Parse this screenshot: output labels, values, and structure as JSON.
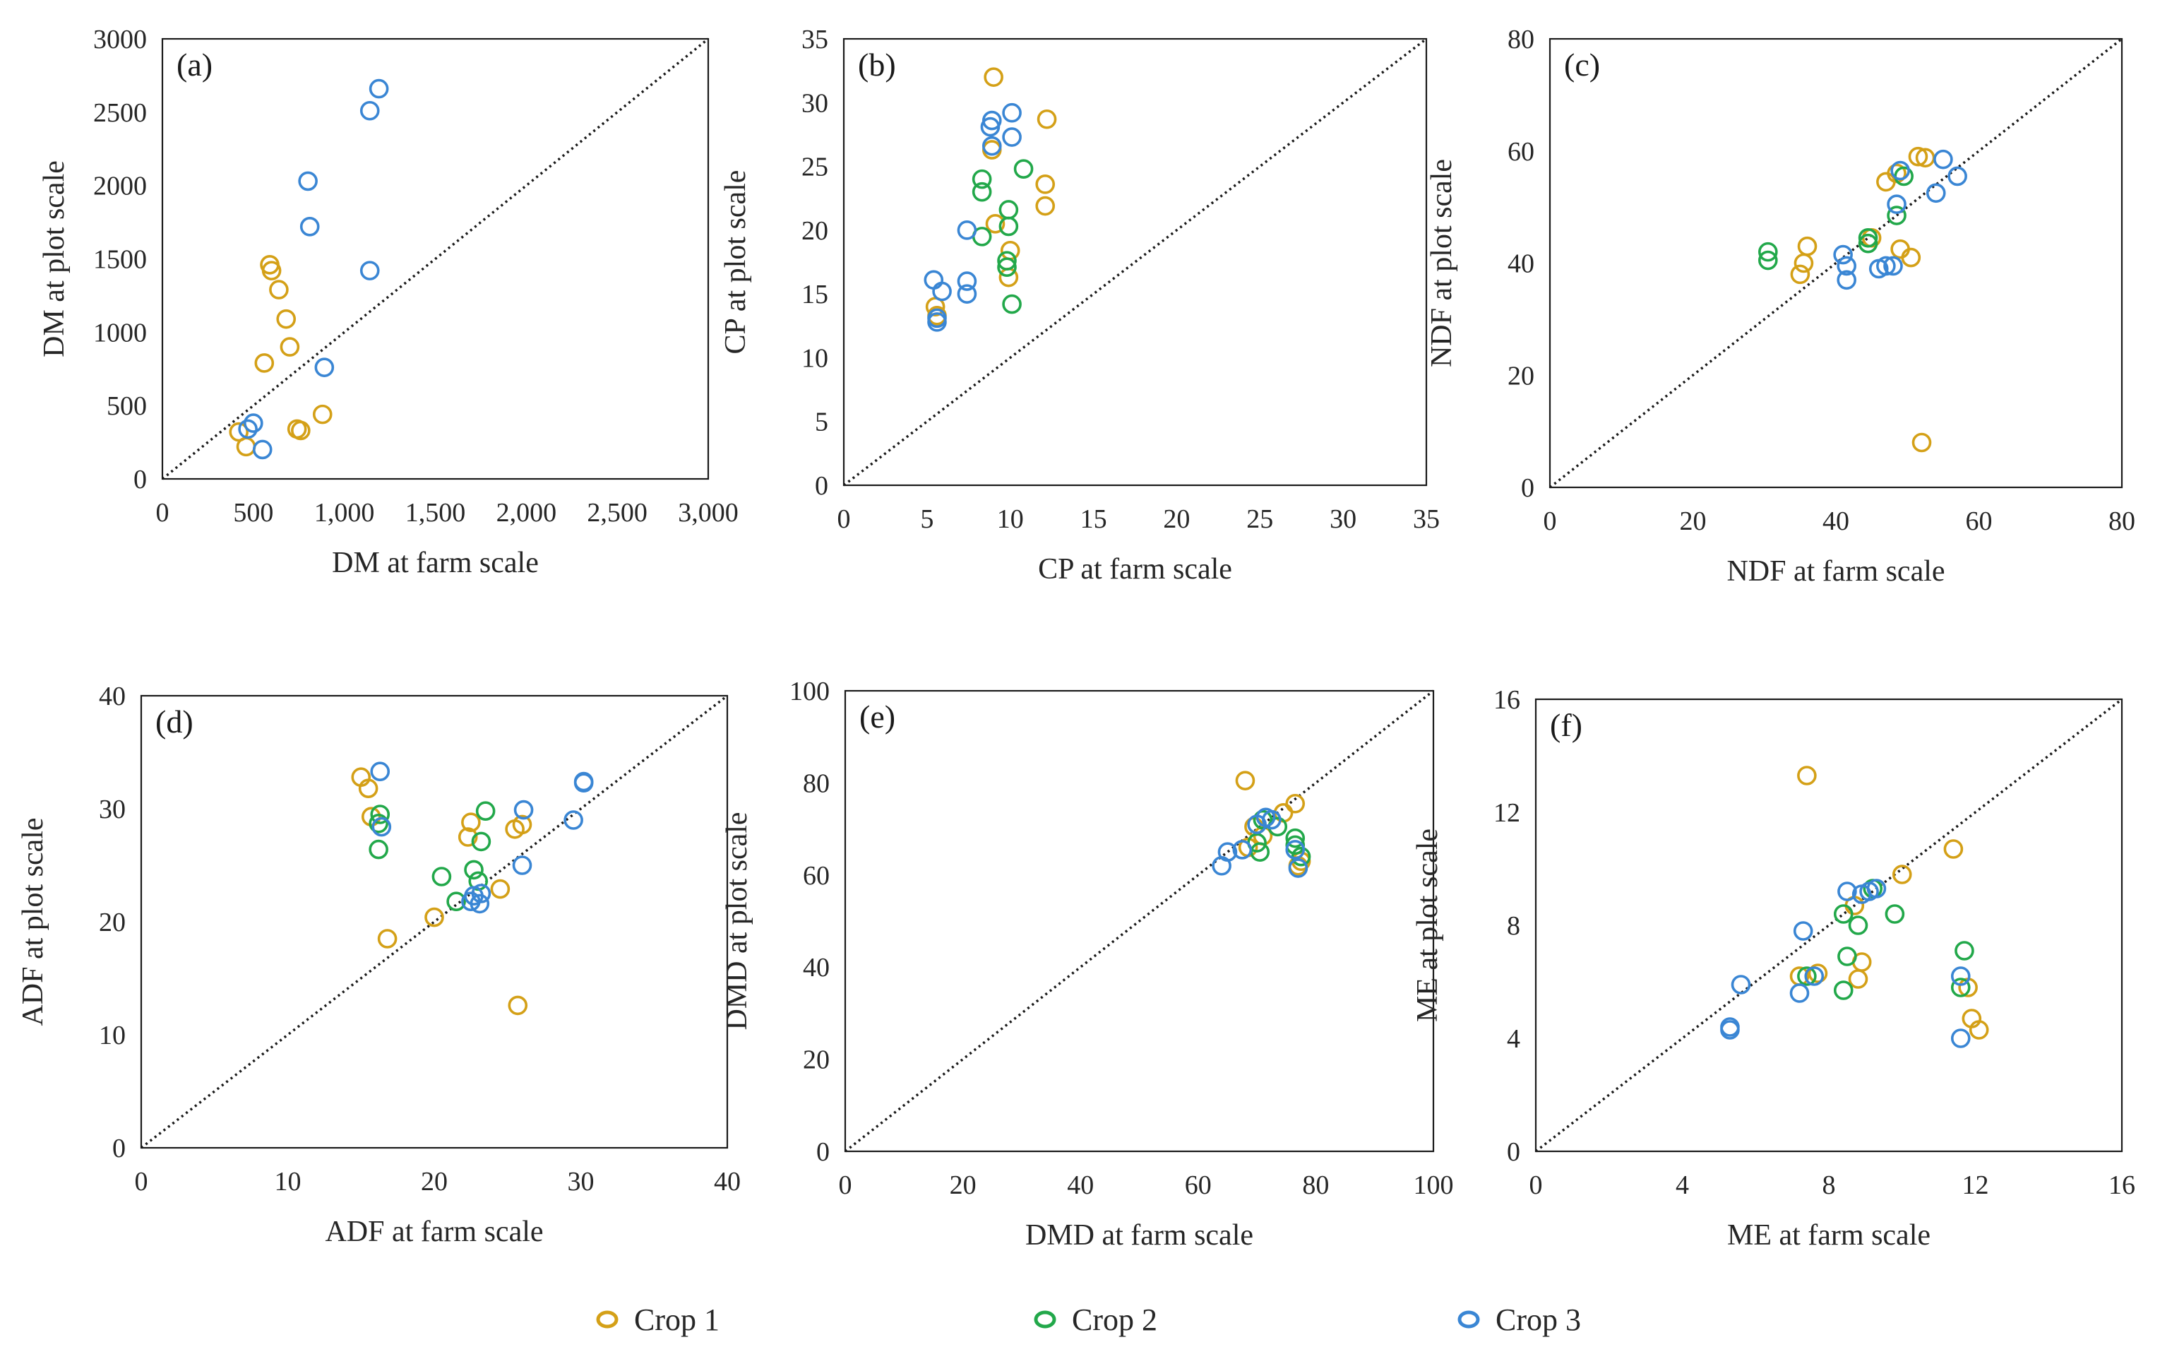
{
  "colors": {
    "crop1": "#D4A017",
    "crop2": "#22A84A",
    "crop3": "#3A86D4",
    "frame": "#1a1a1a",
    "diag": "#1a1a1a"
  },
  "legend": [
    {
      "label": "Crop 1",
      "color": "#D4A017"
    },
    {
      "label": "Crop 2",
      "color": "#22A84A"
    },
    {
      "label": "Crop 3",
      "color": "#3A86D4"
    }
  ],
  "chart_data": [
    {
      "type": "scatter",
      "panel": "(a)",
      "xlabel": "DM at farm scale",
      "ylabel": "DM at plot scale",
      "xlim": [
        0,
        3000
      ],
      "ylim": [
        0,
        3000
      ],
      "xticks": [
        0,
        500,
        1000,
        1500,
        2000,
        2500,
        3000
      ],
      "xtick_labels": [
        "0",
        "500",
        "1,000",
        "1,500",
        "2,000",
        "2,500",
        "3,000"
      ],
      "yticks": [
        0,
        500,
        1000,
        1500,
        2000,
        2500,
        3000
      ],
      "ytick_labels": [
        "0",
        "500",
        "1000",
        "1500",
        "2000",
        "2500",
        "3000"
      ],
      "reference_line": "1:1",
      "series": [
        {
          "name": "Crop 1",
          "points": [
            [
              590,
              1460
            ],
            [
              600,
              1420
            ],
            [
              640,
              1290
            ],
            [
              680,
              1090
            ],
            [
              700,
              900
            ],
            [
              560,
              790
            ],
            [
              880,
              440
            ],
            [
              760,
              330
            ],
            [
              740,
              340
            ],
            [
              420,
              320
            ],
            [
              460,
              220
            ]
          ]
        },
        {
          "name": "Crop 2",
          "points": []
        },
        {
          "name": "Crop 3",
          "points": [
            [
              1190,
              2660
            ],
            [
              1140,
              2510
            ],
            [
              800,
              2030
            ],
            [
              810,
              1720
            ],
            [
              1140,
              1420
            ],
            [
              890,
              760
            ],
            [
              500,
              380
            ],
            [
              470,
              340
            ],
            [
              550,
              200
            ]
          ]
        }
      ]
    },
    {
      "type": "scatter",
      "panel": "(b)",
      "xlabel": "CP at farm scale",
      "ylabel": "CP at plot scale",
      "xlim": [
        0,
        35
      ],
      "ylim": [
        0,
        35
      ],
      "xticks": [
        0,
        5,
        10,
        15,
        20,
        25,
        30,
        35
      ],
      "xtick_labels": [
        "0",
        "5",
        "10",
        "15",
        "20",
        "25",
        "30",
        "35"
      ],
      "yticks": [
        0,
        5,
        10,
        15,
        20,
        25,
        30,
        35
      ],
      "ytick_labels": [
        "0",
        "5",
        "10",
        "15",
        "20",
        "25",
        "30",
        "35"
      ],
      "reference_line": "1:1",
      "series": [
        {
          "name": "Crop 1",
          "points": [
            [
              9.0,
              32.0
            ],
            [
              12.2,
              28.7
            ],
            [
              8.9,
              26.3
            ],
            [
              12.1,
              23.6
            ],
            [
              12.1,
              21.9
            ],
            [
              9.1,
              20.5
            ],
            [
              10.0,
              18.4
            ],
            [
              9.9,
              16.3
            ],
            [
              5.5,
              14.0
            ],
            [
              5.6,
              13.3
            ]
          ]
        },
        {
          "name": "Crop 2",
          "points": [
            [
              10.8,
              24.8
            ],
            [
              8.3,
              24.0
            ],
            [
              8.3,
              23.0
            ],
            [
              9.9,
              21.6
            ],
            [
              9.9,
              20.3
            ],
            [
              8.3,
              19.5
            ],
            [
              9.8,
              17.6
            ],
            [
              9.8,
              17.1
            ],
            [
              10.1,
              14.2
            ]
          ]
        },
        {
          "name": "Crop 3",
          "points": [
            [
              10.1,
              29.2
            ],
            [
              8.9,
              28.6
            ],
            [
              8.8,
              28.1
            ],
            [
              10.1,
              27.3
            ],
            [
              8.9,
              26.6
            ],
            [
              7.4,
              20.0
            ],
            [
              5.4,
              16.1
            ],
            [
              7.4,
              16.0
            ],
            [
              7.4,
              15.0
            ],
            [
              5.9,
              15.2
            ],
            [
              5.6,
              13.1
            ],
            [
              5.6,
              12.8
            ]
          ]
        }
      ]
    },
    {
      "type": "scatter",
      "panel": "(c)",
      "xlabel": "NDF at farm scale",
      "ylabel": "NDF at plot scale",
      "xlim": [
        0,
        80
      ],
      "ylim": [
        0,
        80
      ],
      "xticks": [
        0,
        20,
        40,
        60,
        80
      ],
      "xtick_labels": [
        "0",
        "20",
        "40",
        "60",
        "80"
      ],
      "yticks": [
        0,
        20,
        40,
        60,
        80
      ],
      "ytick_labels": [
        "0",
        "20",
        "40",
        "60",
        "80"
      ],
      "reference_line": "1:1",
      "series": [
        {
          "name": "Crop 1",
          "points": [
            [
              51.5,
              59.0
            ],
            [
              52.5,
              58.8
            ],
            [
              47.0,
              54.5
            ],
            [
              48.5,
              56.0
            ],
            [
              36.0,
              43.0
            ],
            [
              35.5,
              40.0
            ],
            [
              35.0,
              38.0
            ],
            [
              49.0,
              42.5
            ],
            [
              50.5,
              41.0
            ],
            [
              45.0,
              44.5
            ],
            [
              52.0,
              8.0
            ]
          ]
        },
        {
          "name": "Crop 2",
          "points": [
            [
              49.5,
              55.5
            ],
            [
              30.5,
              42.0
            ],
            [
              30.5,
              40.5
            ],
            [
              44.5,
              44.5
            ],
            [
              44.5,
              43.5
            ],
            [
              48.5,
              48.5
            ]
          ]
        },
        {
          "name": "Crop 3",
          "points": [
            [
              55.0,
              58.5
            ],
            [
              49.0,
              56.5
            ],
            [
              57.0,
              55.5
            ],
            [
              54.0,
              52.5
            ],
            [
              48.5,
              50.5
            ],
            [
              41.0,
              41.5
            ],
            [
              41.5,
              39.5
            ],
            [
              41.5,
              37.0
            ],
            [
              46.0,
              39.0
            ],
            [
              47.0,
              39.5
            ],
            [
              48.0,
              39.5
            ]
          ]
        }
      ]
    },
    {
      "type": "scatter",
      "panel": "(d)",
      "xlabel": "ADF at farm scale",
      "ylabel": "ADF at plot scale",
      "xlim": [
        0,
        40
      ],
      "ylim": [
        0,
        40
      ],
      "xticks": [
        0,
        10,
        20,
        30,
        40
      ],
      "xtick_labels": [
        "0",
        "10",
        "20",
        "30",
        "40"
      ],
      "yticks": [
        0,
        10,
        20,
        30,
        40
      ],
      "ytick_labels": [
        "0",
        "10",
        "20",
        "30",
        "40"
      ],
      "reference_line": "1:1",
      "series": [
        {
          "name": "Crop 1",
          "points": [
            [
              15.0,
              32.8
            ],
            [
              15.5,
              31.8
            ],
            [
              15.7,
              29.3
            ],
            [
              22.5,
              28.8
            ],
            [
              26.0,
              28.6
            ],
            [
              25.5,
              28.2
            ],
            [
              22.3,
              27.5
            ],
            [
              24.5,
              22.9
            ],
            [
              20.0,
              20.4
            ],
            [
              16.8,
              18.5
            ],
            [
              25.7,
              12.6
            ]
          ]
        },
        {
          "name": "Crop 2",
          "points": [
            [
              16.3,
              29.5
            ],
            [
              16.2,
              28.7
            ],
            [
              23.5,
              29.8
            ],
            [
              23.2,
              27.1
            ],
            [
              16.2,
              26.4
            ],
            [
              22.7,
              24.6
            ],
            [
              20.5,
              24.0
            ],
            [
              23.0,
              23.6
            ],
            [
              21.5,
              21.8
            ]
          ]
        },
        {
          "name": "Crop 3",
          "points": [
            [
              16.3,
              33.3
            ],
            [
              16.4,
              28.4
            ],
            [
              26.1,
              29.9
            ],
            [
              29.5,
              29.0
            ],
            [
              30.2,
              32.4
            ],
            [
              30.2,
              32.3
            ],
            [
              26.0,
              25.0
            ],
            [
              22.7,
              22.3
            ],
            [
              22.5,
              21.8
            ],
            [
              23.1,
              21.6
            ],
            [
              23.2,
              22.5
            ]
          ]
        }
      ]
    },
    {
      "type": "scatter",
      "panel": "(e)",
      "xlabel": "DMD at farm scale",
      "ylabel": "DMD at plot scale",
      "xlim": [
        0,
        100
      ],
      "ylim": [
        0,
        100
      ],
      "xticks": [
        0,
        20,
        40,
        60,
        80,
        100
      ],
      "xtick_labels": [
        "0",
        "20",
        "40",
        "60",
        "80",
        "100"
      ],
      "yticks": [
        0,
        20,
        40,
        60,
        80,
        100
      ],
      "ytick_labels": [
        "0",
        "20",
        "40",
        "60",
        "80",
        "100"
      ],
      "reference_line": "1:1",
      "series": [
        {
          "name": "Crop 1",
          "points": [
            [
              68.0,
              80.5
            ],
            [
              76.5,
              75.5
            ],
            [
              74.5,
              73.5
            ],
            [
              69.5,
              70.5
            ],
            [
              71.0,
              68.5
            ],
            [
              68.5,
              66.0
            ],
            [
              77.5,
              63.0
            ],
            [
              77.0,
              62.0
            ]
          ]
        },
        {
          "name": "Crop 2",
          "points": [
            [
              71.0,
              72.0
            ],
            [
              73.5,
              70.5
            ],
            [
              76.5,
              68.0
            ],
            [
              76.5,
              66.5
            ],
            [
              70.5,
              65.0
            ],
            [
              77.5,
              64.0
            ],
            [
              70.0,
              67.0
            ]
          ]
        },
        {
          "name": "Crop 3",
          "points": [
            [
              71.5,
              72.5
            ],
            [
              72.5,
              72.0
            ],
            [
              70.0,
              71.0
            ],
            [
              67.5,
              65.5
            ],
            [
              65.0,
              65.0
            ],
            [
              64.0,
              62.0
            ],
            [
              76.5,
              65.5
            ],
            [
              77.0,
              61.5
            ]
          ]
        }
      ]
    },
    {
      "type": "scatter",
      "panel": "(f)",
      "xlabel": "ME at farm scale",
      "ylabel": "ME at plot scale",
      "xlim": [
        0,
        16
      ],
      "ylim": [
        0,
        16
      ],
      "xticks": [
        0,
        4,
        8,
        12,
        16
      ],
      "xtick_labels": [
        "0",
        "4",
        "8",
        "12",
        "16"
      ],
      "yticks": [
        0,
        4,
        8,
        12,
        16
      ],
      "ytick_labels": [
        "0",
        "4",
        "8",
        "12",
        "16"
      ],
      "reference_line": "1:1",
      "series": [
        {
          "name": "Crop 1",
          "points": [
            [
              7.4,
              13.3
            ],
            [
              11.4,
              10.7
            ],
            [
              10.0,
              9.8
            ],
            [
              8.7,
              8.7
            ],
            [
              8.9,
              6.7
            ],
            [
              8.8,
              6.1
            ],
            [
              7.2,
              6.2
            ],
            [
              7.7,
              6.3
            ],
            [
              11.8,
              5.8
            ],
            [
              11.9,
              4.7
            ],
            [
              12.1,
              4.3
            ]
          ]
        },
        {
          "name": "Crop 2",
          "points": [
            [
              9.2,
              9.3
            ],
            [
              9.8,
              8.4
            ],
            [
              8.8,
              8.0
            ],
            [
              8.4,
              8.4
            ],
            [
              8.5,
              6.9
            ],
            [
              8.4,
              5.7
            ],
            [
              11.7,
              7.1
            ],
            [
              11.6,
              5.8
            ],
            [
              7.4,
              6.2
            ]
          ]
        },
        {
          "name": "Crop 3",
          "points": [
            [
              8.5,
              9.2
            ],
            [
              8.9,
              9.1
            ],
            [
              9.1,
              9.2
            ],
            [
              9.3,
              9.3
            ],
            [
              7.3,
              7.8
            ],
            [
              7.6,
              6.2
            ],
            [
              5.6,
              5.9
            ],
            [
              7.2,
              5.6
            ],
            [
              5.3,
              4.4
            ],
            [
              5.3,
              4.3
            ],
            [
              11.6,
              6.2
            ],
            [
              11.6,
              4.0
            ]
          ]
        }
      ]
    }
  ]
}
